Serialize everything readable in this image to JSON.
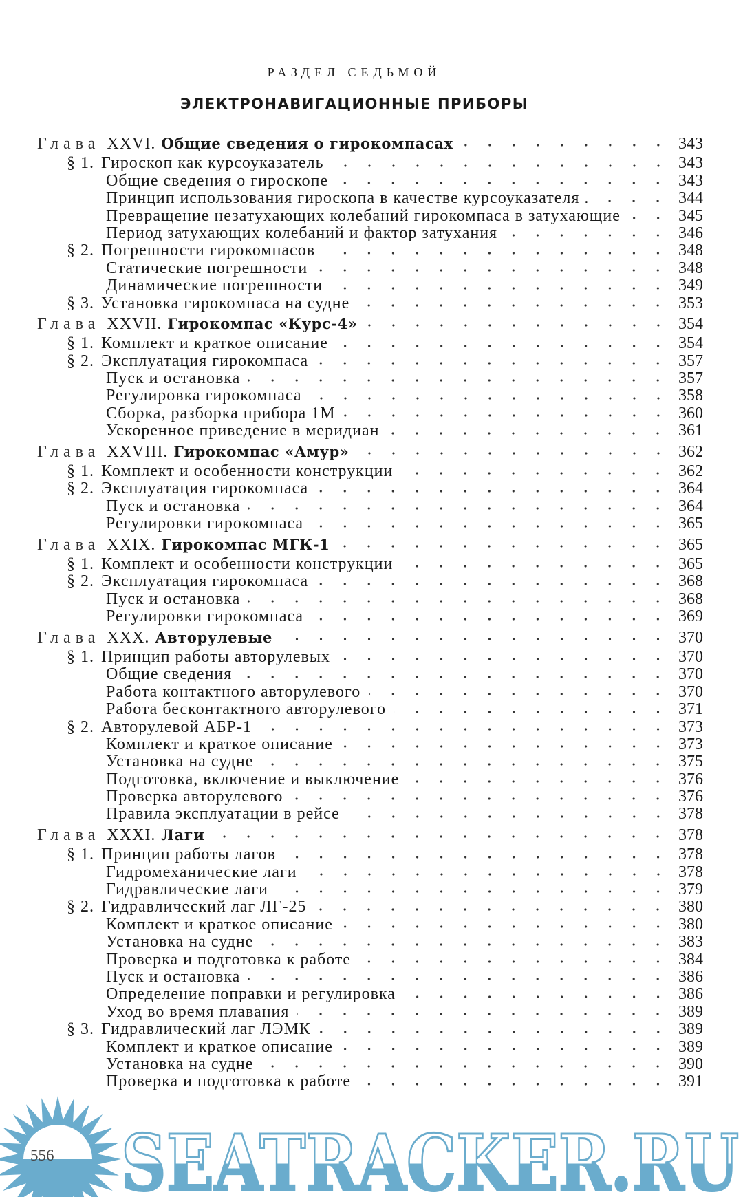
{
  "header": {
    "section_label": "РАЗДЕЛ СЕДЬМОЙ",
    "section_title": "ЭЛЕКТРОНАВИГАЦИОННЫЕ ПРИБОРЫ"
  },
  "toc": [
    {
      "type": "chapter",
      "glava": "Глава",
      "num": "XXVI.",
      "title": "Общие сведения о гирокомпасах",
      "page": "343"
    },
    {
      "type": "section",
      "num": "§ 1.",
      "title": "Гироскоп как курсоуказатель",
      "page": "343"
    },
    {
      "type": "sub",
      "title": "Общие сведения о гироскопе",
      "page": "343"
    },
    {
      "type": "sub",
      "title": "Принцип использования гироскопа в качестве курсоуказателя .",
      "page": "344"
    },
    {
      "type": "sub",
      "title": "Превращение незатухающих колебаний гирокомпаса в затухающие",
      "page": "345"
    },
    {
      "type": "sub",
      "title": "Период затухающих колебаний и фактор затухания",
      "page": "346"
    },
    {
      "type": "section",
      "num": "§ 2.",
      "title": "Погрешности гирокомпасов",
      "page": "348"
    },
    {
      "type": "sub",
      "title": "Статические погрешности",
      "page": "348"
    },
    {
      "type": "sub",
      "title": "Динамические погрешности",
      "page": "349"
    },
    {
      "type": "section",
      "num": "§ 3.",
      "title": "Установка гирокомпаса на судне",
      "page": "353"
    },
    {
      "type": "chapter",
      "glava": "Глава",
      "num": "XXVII.",
      "title": "Гирокомпас «Курс-4»",
      "page": "354"
    },
    {
      "type": "section",
      "num": "§ 1.",
      "title": "Комплект и краткое описание",
      "page": "354"
    },
    {
      "type": "section",
      "num": "§ 2.",
      "title": "Эксплуатация гирокомпаса",
      "page": "357"
    },
    {
      "type": "sub",
      "title": "Пуск и остановка",
      "page": "357"
    },
    {
      "type": "sub",
      "title": "Регулировка гирокомпаса",
      "page": "358"
    },
    {
      "type": "sub",
      "title": "Сборка, разборка прибора 1М",
      "page": "360"
    },
    {
      "type": "sub",
      "title": "Ускоренное приведение в меридиан",
      "page": "361"
    },
    {
      "type": "chapter",
      "glava": "Глава",
      "num": "XXVIII.",
      "title": "Гирокомпас «Амур»",
      "page": "362"
    },
    {
      "type": "section",
      "num": "§ 1.",
      "title": "Комплект и особенности конструкции",
      "page": "362"
    },
    {
      "type": "section",
      "num": "§ 2.",
      "title": "Эксплуатация гирокомпаса",
      "page": "364"
    },
    {
      "type": "sub",
      "title": "Пуск и остановка",
      "page": "364"
    },
    {
      "type": "sub",
      "title": "Регулировки гирокомпаса",
      "page": "365"
    },
    {
      "type": "chapter",
      "glava": "Глава",
      "num": "XXIX.",
      "title": "Гирокомпас МГК-1",
      "page": "365"
    },
    {
      "type": "section",
      "num": "§ 1.",
      "title": "Комплект и особенности конструкции",
      "page": "365"
    },
    {
      "type": "section",
      "num": "§ 2.",
      "title": "Эксплуатация гирокомпаса",
      "page": "368"
    },
    {
      "type": "sub",
      "title": "Пуск и остановка",
      "page": "368"
    },
    {
      "type": "sub",
      "title": "Регулировки гирокомпаса",
      "page": "369"
    },
    {
      "type": "chapter",
      "glava": "Глава",
      "num": "XXX.",
      "title": "Авторулевые",
      "page": "370"
    },
    {
      "type": "section",
      "num": "§ 1.",
      "title": "Принцип работы авторулевых",
      "page": "370"
    },
    {
      "type": "sub",
      "title": "Общие сведения",
      "page": "370"
    },
    {
      "type": "sub",
      "title": "Работа контактного авторулевого",
      "page": "370"
    },
    {
      "type": "sub",
      "title": "Работа бесконтактного авторулевого",
      "page": "371"
    },
    {
      "type": "section",
      "num": "§ 2.",
      "title": "Авторулевой АБР-1",
      "page": "373"
    },
    {
      "type": "sub",
      "title": "Комплект и краткое описание",
      "page": "373"
    },
    {
      "type": "sub",
      "title": "Установка на судне",
      "page": "375"
    },
    {
      "type": "sub",
      "title": "Подготовка, включение и выключение",
      "page": "376"
    },
    {
      "type": "sub",
      "title": "Проверка авторулевого",
      "page": "376"
    },
    {
      "type": "sub",
      "title": "Правила эксплуатации в рейсе",
      "page": "378"
    },
    {
      "type": "chapter",
      "glava": "Глава",
      "num": "XXXI.",
      "title": "Лаги",
      "page": "378"
    },
    {
      "type": "section",
      "num": "§ 1.",
      "title": "Принцип работы лагов",
      "page": "378"
    },
    {
      "type": "sub",
      "title": "Гидромеханические лаги",
      "page": "378"
    },
    {
      "type": "sub",
      "title": "Гидравлические лаги",
      "page": "379"
    },
    {
      "type": "section",
      "num": "§ 2.",
      "title": "Гидравлический лаг ЛГ-25",
      "page": "380"
    },
    {
      "type": "sub",
      "title": "Комплект и краткое описание",
      "page": "380"
    },
    {
      "type": "sub",
      "title": "Установка на судне",
      "page": "383"
    },
    {
      "type": "sub",
      "title": "Проверка и подготовка к работе",
      "page": "384"
    },
    {
      "type": "sub",
      "title": "Пуск и остановка",
      "page": "386"
    },
    {
      "type": "sub",
      "title": "Определение поправки и регулировка",
      "page": "386"
    },
    {
      "type": "sub",
      "title": "Уход во время плавания",
      "page": "389"
    },
    {
      "type": "section",
      "num": "§ 3.",
      "title": "Гидравлический лаг ЛЭМК",
      "page": "389"
    },
    {
      "type": "sub",
      "title": "Комплект и краткое описание",
      "page": "389"
    },
    {
      "type": "sub",
      "title": "Установка на судне",
      "page": "390"
    },
    {
      "type": "sub",
      "title": "Проверка и подготовка к работе",
      "page": "391"
    }
  ],
  "footer": {
    "page_number": "556",
    "watermark_text": "SEATRACKER.RU",
    "watermark_color": "#6aaccd"
  }
}
